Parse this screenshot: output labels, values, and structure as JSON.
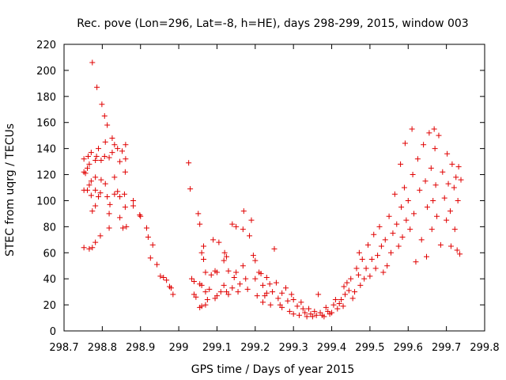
{
  "chart_data": {
    "type": "scatter",
    "title": "Rec. pove (Lon=296, Lat=-8, h=HE), days 298-299, 2015, window 003",
    "xlabel": "GPS time / Days of year 2015",
    "ylabel": "STEC from uqrg / TECUs",
    "xlim": [
      298.7,
      299.8
    ],
    "ylim": [
      0,
      220
    ],
    "xticks": [
      298.7,
      298.8,
      298.9,
      299,
      299.1,
      299.2,
      299.3,
      299.4,
      299.5,
      299.6,
      299.7,
      299.8
    ],
    "xtick_labels": [
      "298.7",
      "298.8",
      "298.9",
      "299",
      "299.1",
      "299.2",
      "299.3",
      "299.4",
      "299.5",
      "299.6",
      "299.7",
      "299.8"
    ],
    "yticks": [
      0,
      20,
      40,
      60,
      80,
      100,
      120,
      140,
      160,
      180,
      200,
      220
    ],
    "ytick_labels": [
      "0",
      "20",
      "40",
      "60",
      "80",
      "100",
      "120",
      "140",
      "160",
      "180",
      "200",
      "220"
    ],
    "grid": false,
    "marker": "+",
    "marker_color": "#e00000",
    "series": [
      {
        "points": [
          [
            298.752,
            64
          ],
          [
            298.752,
            108
          ],
          [
            298.752,
            122
          ],
          [
            298.752,
            132
          ],
          [
            298.756,
            121
          ],
          [
            298.761,
            108
          ],
          [
            298.761,
            125
          ],
          [
            298.763,
            134
          ],
          [
            298.766,
            63
          ],
          [
            298.766,
            112
          ],
          [
            298.766,
            128
          ],
          [
            298.771,
            104
          ],
          [
            298.771,
            115
          ],
          [
            298.771,
            137
          ],
          [
            298.774,
            206
          ],
          [
            298.774,
            64
          ],
          [
            298.774,
            92
          ],
          [
            298.782,
            68
          ],
          [
            298.782,
            96
          ],
          [
            298.782,
            108
          ],
          [
            298.782,
            118
          ],
          [
            298.782,
            131
          ],
          [
            298.785,
            134
          ],
          [
            298.786,
            187
          ],
          [
            298.79,
            140
          ],
          [
            298.79,
            103
          ],
          [
            298.795,
            73
          ],
          [
            298.795,
            106
          ],
          [
            298.797,
            131
          ],
          [
            298.797,
            116
          ],
          [
            298.799,
            174
          ],
          [
            298.806,
            165
          ],
          [
            298.806,
            134
          ],
          [
            298.808,
            145
          ],
          [
            298.808,
            113
          ],
          [
            298.813,
            158
          ],
          [
            298.813,
            103
          ],
          [
            298.818,
            133
          ],
          [
            298.818,
            90
          ],
          [
            298.818,
            79
          ],
          [
            298.82,
            97
          ],
          [
            298.826,
            137
          ],
          [
            298.826,
            148
          ],
          [
            298.832,
            143
          ],
          [
            298.832,
            105
          ],
          [
            298.832,
            118
          ],
          [
            298.84,
            107
          ],
          [
            298.84,
            140
          ],
          [
            298.846,
            130
          ],
          [
            298.846,
            103
          ],
          [
            298.846,
            87
          ],
          [
            298.854,
            79
          ],
          [
            298.852,
            138
          ],
          [
            298.861,
            143
          ],
          [
            298.861,
            132
          ],
          [
            298.86,
            122
          ],
          [
            298.858,
            105
          ],
          [
            298.86,
            95
          ],
          [
            298.863,
            80
          ],
          [
            298.881,
            96
          ],
          [
            298.881,
            100
          ],
          [
            298.898,
            89
          ],
          [
            298.9,
            88
          ],
          [
            298.916,
            79
          ],
          [
            298.92,
            72
          ],
          [
            298.926,
            56
          ],
          [
            298.932,
            66
          ],
          [
            298.943,
            51
          ],
          [
            298.952,
            42
          ],
          [
            298.96,
            41
          ],
          [
            298.968,
            39
          ],
          [
            298.976,
            34
          ],
          [
            298.98,
            33
          ],
          [
            298.985,
            28
          ],
          [
            299.026,
            129
          ],
          [
            299.03,
            109
          ],
          [
            299.034,
            40
          ],
          [
            299.04,
            38
          ],
          [
            299.04,
            28
          ],
          [
            299.045,
            26
          ],
          [
            299.051,
            90
          ],
          [
            299.055,
            82
          ],
          [
            299.055,
            36
          ],
          [
            299.055,
            18
          ],
          [
            299.06,
            60
          ],
          [
            299.06,
            35
          ],
          [
            299.06,
            19
          ],
          [
            299.065,
            65
          ],
          [
            299.065,
            55
          ],
          [
            299.07,
            45
          ],
          [
            299.07,
            30
          ],
          [
            299.07,
            20
          ],
          [
            299.075,
            24
          ],
          [
            299.08,
            32
          ],
          [
            299.085,
            43
          ],
          [
            299.09,
            70
          ],
          [
            299.095,
            46
          ],
          [
            299.095,
            25
          ],
          [
            299.1,
            45
          ],
          [
            299.1,
            27
          ],
          [
            299.105,
            68
          ],
          [
            299.11,
            30
          ],
          [
            299.118,
            35
          ],
          [
            299.118,
            54
          ],
          [
            299.12,
            60
          ],
          [
            299.125,
            57
          ],
          [
            299.125,
            30
          ],
          [
            299.13,
            28
          ],
          [
            299.13,
            46
          ],
          [
            299.14,
            82
          ],
          [
            299.14,
            33
          ],
          [
            299.145,
            41
          ],
          [
            299.15,
            80
          ],
          [
            299.15,
            45
          ],
          [
            299.155,
            30
          ],
          [
            299.16,
            36
          ],
          [
            299.168,
            78
          ],
          [
            299.168,
            50
          ],
          [
            299.17,
            92
          ],
          [
            299.175,
            40
          ],
          [
            299.18,
            32
          ],
          [
            299.185,
            73
          ],
          [
            299.19,
            85
          ],
          [
            299.195,
            58
          ],
          [
            299.2,
            54
          ],
          [
            299.2,
            40
          ],
          [
            299.205,
            27
          ],
          [
            299.21,
            45
          ],
          [
            299.215,
            44
          ],
          [
            299.22,
            35
          ],
          [
            299.22,
            22
          ],
          [
            299.225,
            27
          ],
          [
            299.23,
            41
          ],
          [
            299.23,
            29
          ],
          [
            299.238,
            36
          ],
          [
            299.24,
            20
          ],
          [
            299.245,
            30
          ],
          [
            299.25,
            63
          ],
          [
            299.255,
            37
          ],
          [
            299.26,
            25
          ],
          [
            299.265,
            20
          ],
          [
            299.27,
            29
          ],
          [
            299.27,
            18
          ],
          [
            299.28,
            33
          ],
          [
            299.285,
            23
          ],
          [
            299.29,
            15
          ],
          [
            299.295,
            28
          ],
          [
            299.3,
            24
          ],
          [
            299.3,
            13
          ],
          [
            299.31,
            19
          ],
          [
            299.315,
            12
          ],
          [
            299.32,
            22
          ],
          [
            299.325,
            17
          ],
          [
            299.33,
            14
          ],
          [
            299.335,
            11
          ],
          [
            299.34,
            17
          ],
          [
            299.345,
            13
          ],
          [
            299.35,
            11
          ],
          [
            299.355,
            15
          ],
          [
            299.36,
            12
          ],
          [
            299.365,
            28
          ],
          [
            299.37,
            14
          ],
          [
            299.375,
            12
          ],
          [
            299.38,
            11
          ],
          [
            299.385,
            18
          ],
          [
            299.39,
            15
          ],
          [
            299.395,
            13
          ],
          [
            299.4,
            14
          ],
          [
            299.405,
            20
          ],
          [
            299.41,
            24
          ],
          [
            299.415,
            17
          ],
          [
            299.42,
            21
          ],
          [
            299.425,
            24
          ],
          [
            299.43,
            19
          ],
          [
            299.432,
            34
          ],
          [
            299.435,
            28
          ],
          [
            299.44,
            37
          ],
          [
            299.445,
            31
          ],
          [
            299.45,
            40
          ],
          [
            299.455,
            25
          ],
          [
            299.46,
            30
          ],
          [
            299.465,
            48
          ],
          [
            299.47,
            43
          ],
          [
            299.472,
            60
          ],
          [
            299.475,
            35
          ],
          [
            299.48,
            55
          ],
          [
            299.485,
            40
          ],
          [
            299.49,
            48
          ],
          [
            299.495,
            66
          ],
          [
            299.5,
            42
          ],
          [
            299.505,
            55
          ],
          [
            299.51,
            74
          ],
          [
            299.515,
            48
          ],
          [
            299.52,
            58
          ],
          [
            299.525,
            80
          ],
          [
            299.53,
            65
          ],
          [
            299.535,
            45
          ],
          [
            299.54,
            70
          ],
          [
            299.545,
            50
          ],
          [
            299.55,
            88
          ],
          [
            299.555,
            60
          ],
          [
            299.56,
            75
          ],
          [
            299.565,
            105
          ],
          [
            299.57,
            82
          ],
          [
            299.575,
            65
          ],
          [
            299.58,
            128
          ],
          [
            299.582,
            95
          ],
          [
            299.585,
            72
          ],
          [
            299.59,
            110
          ],
          [
            299.592,
            144
          ],
          [
            299.595,
            85
          ],
          [
            299.6,
            100
          ],
          [
            299.605,
            78
          ],
          [
            299.61,
            155
          ],
          [
            299.612,
            120
          ],
          [
            299.615,
            90
          ],
          [
            299.62,
            53
          ],
          [
            299.625,
            132
          ],
          [
            299.63,
            108
          ],
          [
            299.635,
            70
          ],
          [
            299.64,
            143
          ],
          [
            299.645,
            115
          ],
          [
            299.648,
            57
          ],
          [
            299.65,
            95
          ],
          [
            299.655,
            152
          ],
          [
            299.66,
            125
          ],
          [
            299.662,
            78
          ],
          [
            299.665,
            100
          ],
          [
            299.668,
            155
          ],
          [
            299.67,
            140
          ],
          [
            299.672,
            112
          ],
          [
            299.675,
            88
          ],
          [
            299.68,
            150
          ],
          [
            299.685,
            66
          ],
          [
            299.69,
            122
          ],
          [
            299.695,
            102
          ],
          [
            299.7,
            85
          ],
          [
            299.702,
            136
          ],
          [
            299.705,
            113
          ],
          [
            299.71,
            92
          ],
          [
            299.712,
            65
          ],
          [
            299.715,
            128
          ],
          [
            299.72,
            110
          ],
          [
            299.722,
            78
          ],
          [
            299.725,
            118
          ],
          [
            299.728,
            62
          ],
          [
            299.73,
            100
          ],
          [
            299.732,
            126
          ],
          [
            299.735,
            59
          ],
          [
            299.738,
            116
          ]
        ]
      }
    ]
  }
}
